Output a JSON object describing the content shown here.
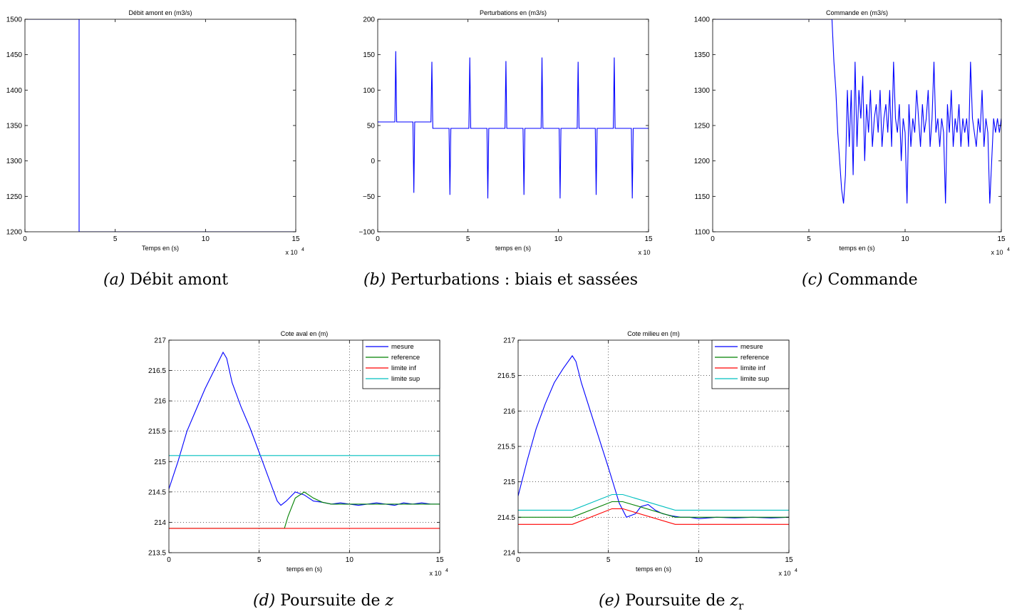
{
  "chart_data": [
    {
      "id": "a",
      "type": "line",
      "title": "Débit amont en (m3/s)",
      "xlabel": "Temps en (s)",
      "ylabel": "",
      "x_exponent": "x 10",
      "x_exponent_power": "4",
      "xlim": [
        0,
        15
      ],
      "ylim": [
        1200,
        1500
      ],
      "xticks": [
        0,
        5,
        10,
        15
      ],
      "yticks": [
        1200,
        1250,
        1300,
        1350,
        1400,
        1450,
        1500
      ],
      "grid": false,
      "colors": {
        "mesure": "#0000ff"
      },
      "series": [
        {
          "color": "#0000ff",
          "x": [
            0,
            3.0,
            3.0,
            15
          ],
          "y": [
            1500,
            1500,
            1200,
            1200
          ]
        }
      ],
      "caption": {
        "label": "(a)",
        "text": "Débit amont"
      }
    },
    {
      "id": "b",
      "type": "line",
      "title": "Perturbations en (m3/s)",
      "xlabel": "temps en (s)",
      "ylabel": "",
      "x_exponent": "x 10",
      "x_exponent_power": "4",
      "xlim": [
        0,
        15
      ],
      "ylim": [
        -100,
        200
      ],
      "xticks": [
        0,
        5,
        10,
        15
      ],
      "yticks": [
        -100,
        -50,
        0,
        50,
        100,
        150,
        200
      ],
      "tick_text": {
        "-100": "−100",
        "-50": "−50"
      },
      "grid": false,
      "series": [
        {
          "color": "#0000ff",
          "x": [
            0,
            0.95,
            1.0,
            1.05,
            1.95,
            2.0,
            2.05,
            2.95,
            3.0,
            3.05,
            3.95,
            4.0,
            4.05,
            5.05,
            5.1,
            5.15,
            6.05,
            6.1,
            6.15,
            7.05,
            7.1,
            7.15,
            8.05,
            8.1,
            8.15,
            9.05,
            9.1,
            9.15,
            10.05,
            10.1,
            10.15,
            11.05,
            11.1,
            11.15,
            12.05,
            12.1,
            12.15,
            13.05,
            13.1,
            13.15,
            14.05,
            14.1,
            14.15,
            15
          ],
          "y": [
            55,
            55,
            155,
            55,
            55,
            -45,
            55,
            55,
            140,
            46,
            46,
            -48,
            46,
            46,
            146,
            46,
            46,
            -53,
            46,
            46,
            141,
            46,
            46,
            -48,
            46,
            46,
            146,
            46,
            46,
            -53,
            46,
            46,
            140,
            46,
            46,
            -48,
            46,
            46,
            146,
            46,
            46,
            -53,
            46,
            46
          ]
        }
      ],
      "caption": {
        "label": "(b)",
        "text": "Perturbations : biais et sassées"
      }
    },
    {
      "id": "c",
      "type": "line",
      "title": "Commande en (m3/s)",
      "xlabel": "temps en (s)",
      "ylabel": "",
      "x_exponent": "x 10",
      "x_exponent_power": "4",
      "xlim": [
        0,
        15
      ],
      "ylim": [
        1100,
        1400
      ],
      "xticks": [
        0,
        5,
        10,
        15
      ],
      "yticks": [
        1100,
        1150,
        1200,
        1250,
        1300,
        1350,
        1400
      ],
      "grid": false,
      "series": [
        {
          "color": "#0000ff",
          "x": [
            0,
            6.2,
            6.3,
            6.4,
            6.5,
            6.6,
            6.7,
            6.8,
            6.9,
            7.0,
            7.1,
            7.2,
            7.3,
            7.4,
            7.5,
            7.6,
            7.7,
            7.8,
            7.9,
            8.0,
            8.1,
            8.2,
            8.3,
            8.4,
            8.5,
            8.6,
            8.7,
            8.8,
            8.9,
            9.0,
            9.1,
            9.2,
            9.3,
            9.4,
            9.5,
            9.6,
            9.7,
            9.8,
            9.9,
            10.0,
            10.1,
            10.2,
            10.3,
            10.4,
            10.5,
            10.6,
            10.7,
            10.8,
            10.9,
            11.0,
            11.1,
            11.2,
            11.3,
            11.4,
            11.5,
            11.6,
            11.7,
            11.8,
            11.9,
            12.0,
            12.1,
            12.2,
            12.3,
            12.4,
            12.5,
            12.6,
            12.7,
            12.8,
            12.9,
            13.0,
            13.1,
            13.2,
            13.3,
            13.4,
            13.5,
            13.6,
            13.7,
            13.8,
            13.9,
            14.0,
            14.1,
            14.2,
            14.3,
            14.4,
            14.5,
            14.6,
            14.7,
            14.8,
            14.9,
            15.0
          ],
          "y": [
            1400,
            1400,
            1340,
            1300,
            1240,
            1200,
            1160,
            1140,
            1180,
            1300,
            1220,
            1300,
            1180,
            1340,
            1220,
            1300,
            1260,
            1320,
            1200,
            1280,
            1240,
            1300,
            1220,
            1260,
            1280,
            1240,
            1300,
            1220,
            1260,
            1280,
            1240,
            1300,
            1220,
            1340,
            1260,
            1240,
            1280,
            1200,
            1260,
            1240,
            1140,
            1280,
            1220,
            1260,
            1240,
            1300,
            1260,
            1220,
            1280,
            1240,
            1260,
            1300,
            1220,
            1260,
            1340,
            1240,
            1260,
            1220,
            1260,
            1240,
            1140,
            1280,
            1240,
            1300,
            1220,
            1260,
            1240,
            1280,
            1220,
            1260,
            1240,
            1260,
            1220,
            1340,
            1260,
            1240,
            1220,
            1260,
            1240,
            1300,
            1220,
            1260,
            1240,
            1140,
            1200,
            1260,
            1240,
            1260,
            1240,
            1260
          ]
        }
      ],
      "caption": {
        "label": "(c)",
        "text": "Commande"
      }
    },
    {
      "id": "d",
      "type": "line",
      "title": "Cote aval en (m)",
      "xlabel": "temps en (s)",
      "ylabel": "",
      "x_exponent": "x 10",
      "x_exponent_power": "4",
      "xlim": [
        0,
        15
      ],
      "ylim": [
        213.5,
        217
      ],
      "xticks": [
        0,
        5,
        10,
        15
      ],
      "yticks": [
        213.5,
        214,
        214.5,
        215,
        215.5,
        216,
        216.5,
        217
      ],
      "grid": true,
      "legend": {
        "position": "top-right",
        "entries": [
          "mesure",
          "reference",
          "limite inf",
          "limite sup"
        ]
      },
      "series": [
        {
          "name": "mesure",
          "color": "#0000ff",
          "x": [
            0,
            0.5,
            1.0,
            1.5,
            2.0,
            2.5,
            3.0,
            3.2,
            3.5,
            4.0,
            4.5,
            5.0,
            5.5,
            6.0,
            6.2,
            6.5,
            7.0,
            7.5,
            8.0,
            8.5,
            9.0,
            9.5,
            10.0,
            10.5,
            11.0,
            11.5,
            12.0,
            12.5,
            13.0,
            13.5,
            14.0,
            14.5,
            15.0
          ],
          "y": [
            214.55,
            215.0,
            215.5,
            215.85,
            216.2,
            216.5,
            216.8,
            216.7,
            216.3,
            215.9,
            215.55,
            215.15,
            214.75,
            214.35,
            214.28,
            214.35,
            214.5,
            214.45,
            214.35,
            214.33,
            214.3,
            214.32,
            214.3,
            214.28,
            214.3,
            214.32,
            214.3,
            214.28,
            214.32,
            214.3,
            214.32,
            214.3,
            214.3
          ]
        },
        {
          "name": "reference",
          "color": "#008000",
          "x": [
            0,
            6.4,
            6.6,
            7.0,
            7.5,
            8.0,
            8.5,
            9.0,
            9.5,
            10.0,
            11.0,
            12.0,
            13.0,
            14.0,
            15.0
          ],
          "y": [
            213.9,
            213.9,
            214.1,
            214.4,
            214.5,
            214.4,
            214.33,
            214.3,
            214.3,
            214.3,
            214.3,
            214.3,
            214.3,
            214.3,
            214.3
          ]
        },
        {
          "name": "limite inf",
          "color": "#ff0000",
          "x": [
            0,
            15
          ],
          "y": [
            213.9,
            213.9
          ]
        },
        {
          "name": "limite sup",
          "color": "#00bfbf",
          "x": [
            0,
            15
          ],
          "y": [
            215.1,
            215.1
          ]
        }
      ],
      "caption": {
        "label": "(d)",
        "text": "Poursuite de",
        "math": "z",
        "sub": ""
      }
    },
    {
      "id": "e",
      "type": "line",
      "title": "Cote milieu en (m)",
      "xlabel": "temps en (s)",
      "ylabel": "",
      "x_exponent": "x 10",
      "x_exponent_power": "4",
      "xlim": [
        0,
        15
      ],
      "ylim": [
        214,
        217
      ],
      "xticks": [
        0,
        5,
        10,
        15
      ],
      "yticks": [
        214,
        214.5,
        215,
        215.5,
        216,
        216.5,
        217
      ],
      "grid": true,
      "legend": {
        "position": "top-right",
        "entries": [
          "mesure",
          "reference",
          "limite inf",
          "limite sup"
        ]
      },
      "series": [
        {
          "name": "mesure",
          "color": "#0000ff",
          "x": [
            0,
            0.5,
            1.0,
            1.5,
            2.0,
            2.5,
            3.0,
            3.2,
            3.5,
            4.0,
            4.5,
            5.0,
            5.3,
            5.6,
            6.0,
            6.5,
            6.8,
            7.2,
            7.6,
            8.0,
            8.5,
            9.0,
            9.5,
            10.0,
            11.0,
            12.0,
            13.0,
            14.0,
            15.0
          ],
          "y": [
            214.8,
            215.3,
            215.75,
            216.1,
            216.4,
            216.6,
            216.78,
            216.7,
            216.4,
            216.0,
            215.6,
            215.2,
            214.95,
            214.7,
            214.5,
            214.55,
            214.65,
            214.68,
            214.6,
            214.55,
            214.52,
            214.5,
            214.5,
            214.48,
            214.5,
            214.49,
            214.5,
            214.49,
            214.5
          ]
        },
        {
          "name": "reference",
          "color": "#008000",
          "x": [
            0,
            3.0,
            5.2,
            5.8,
            8.7,
            15
          ],
          "y": [
            214.5,
            214.5,
            214.72,
            214.72,
            214.5,
            214.5
          ]
        },
        {
          "name": "limite inf",
          "color": "#ff0000",
          "x": [
            0,
            3.0,
            5.2,
            5.8,
            8.7,
            15
          ],
          "y": [
            214.4,
            214.4,
            214.62,
            214.62,
            214.4,
            214.4
          ]
        },
        {
          "name": "limite sup",
          "color": "#00bfbf",
          "x": [
            0,
            3.0,
            5.2,
            5.8,
            8.7,
            15
          ],
          "y": [
            214.6,
            214.6,
            214.82,
            214.82,
            214.6,
            214.6
          ]
        }
      ],
      "caption": {
        "label": "(e)",
        "text": "Poursuite de",
        "math": "z",
        "sub": "r"
      }
    }
  ]
}
